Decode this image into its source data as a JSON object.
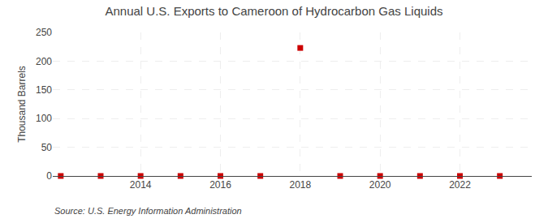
{
  "chart_data": {
    "type": "scatter",
    "title": "Annual U.S. Exports to Cameroon of Hydrocarbon Gas Liquids",
    "y_label": "Thousand Barrels",
    "annotations": [
      "Source: U.S. Energy Information Administration"
    ],
    "x": [
      2012,
      2013,
      2014,
      2015,
      2016,
      2017,
      2018,
      2019,
      2020,
      2021,
      2022,
      2023
    ],
    "values": [
      0,
      0,
      0,
      0,
      0,
      0,
      223,
      0,
      0,
      0,
      0,
      0
    ],
    "color": "#cc0000",
    "marker": "square",
    "xlim": [
      2011.8,
      2023.8
    ],
    "xticks": [
      2014,
      2016,
      2018,
      2020,
      2022
    ],
    "ylim": [
      0,
      250
    ],
    "yticks": [
      0,
      50,
      100,
      150,
      200,
      250
    ],
    "grid": true
  }
}
